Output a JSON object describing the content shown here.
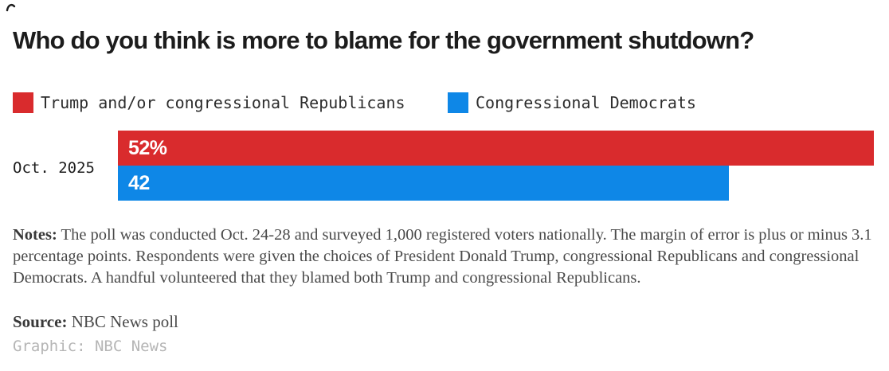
{
  "title": "Who do you think is more to blame for the government shutdown?",
  "legend": [
    {
      "label": "Trump and/or congressional Republicans",
      "color": "#d92b2d"
    },
    {
      "label": "Congressional Democrats",
      "color": "#0e87e7"
    }
  ],
  "chart_data": {
    "type": "bar",
    "orientation": "horizontal",
    "title": "Who do you think is more to blame for the government shutdown?",
    "categories": [
      "Oct. 2025"
    ],
    "series": [
      {
        "name": "Trump and/or congressional Republicans",
        "values": [
          52
        ],
        "value_label": "52%",
        "color": "#d92b2d"
      },
      {
        "name": "Congressional Democrats",
        "values": [
          42
        ],
        "value_label": "42",
        "color": "#0e87e7"
      }
    ],
    "xmax": 52,
    "grid": false,
    "legend_position": "top",
    "value_labels_inside": true
  },
  "row_label": "Oct. 2025",
  "notes": {
    "label": "Notes:",
    "text": " The poll was conducted Oct. 24-28 and surveyed 1,000 registered voters nationally. The margin of error is plus or minus 3.1 percentage points. Respondents were given the choices of President Donald Trump, congressional Republicans and congressional Democrats. A handful volunteered that they blamed both Trump and congressional Republicans."
  },
  "source": {
    "label": "Source:",
    "text": " NBC News poll"
  },
  "credit": "Graphic: NBC News"
}
